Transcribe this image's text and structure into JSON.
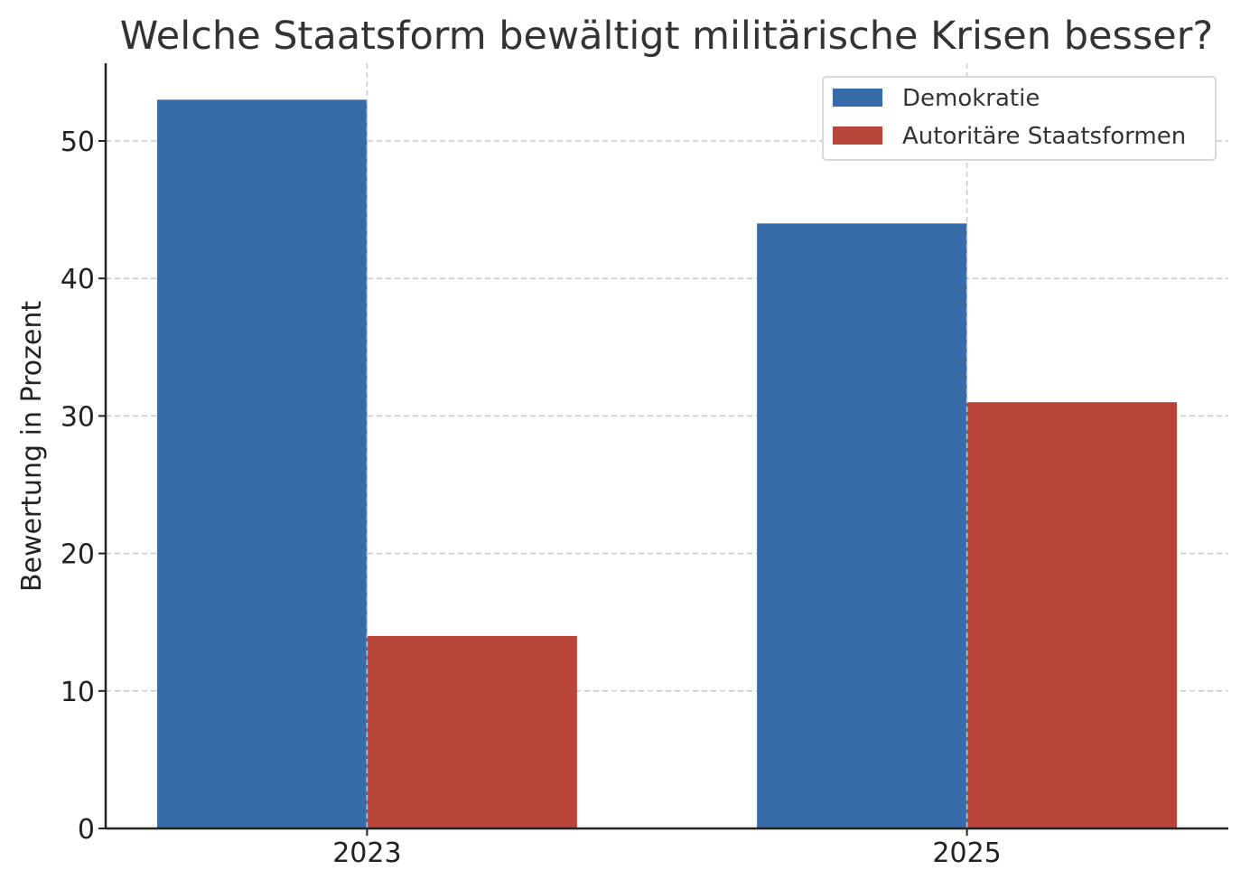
{
  "chart_data": {
    "type": "bar",
    "title": "Welche Staatsform bewältigt militärische Krisen besser?",
    "xlabel": "",
    "ylabel": "Bewertung in Prozent",
    "categories": [
      "2023",
      "2025"
    ],
    "series": [
      {
        "name": "Demokratie",
        "color": "#376baa",
        "values": [
          53,
          44
        ]
      },
      {
        "name": "Autoritäre Staatsformen",
        "color": "#b8443a",
        "values": [
          14,
          31
        ]
      }
    ],
    "ylim": [
      0,
      55.65
    ],
    "yticks": [
      0,
      10,
      20,
      30,
      40,
      50
    ],
    "grid": true,
    "legend_position": "top-right"
  }
}
